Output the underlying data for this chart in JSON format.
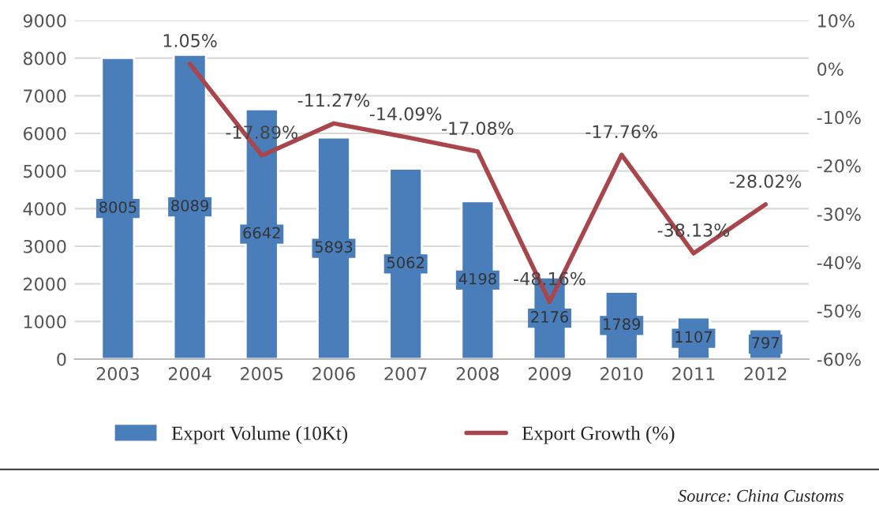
{
  "chart_data": {
    "type": "bar",
    "categories": [
      "2003",
      "2004",
      "2005",
      "2006",
      "2007",
      "2008",
      "2009",
      "2010",
      "2011",
      "2012"
    ],
    "series": [
      {
        "name": "Export Volume (10Kt)",
        "color": "#4a7ebb",
        "values": [
          8005,
          8089,
          6642,
          5893,
          5062,
          4198,
          2176,
          1789,
          1107,
          797
        ],
        "value_labels": [
          "8005",
          "8089",
          "6642",
          "5893",
          "5062",
          "4198",
          "2176",
          "1789",
          "1107",
          "797"
        ]
      },
      {
        "name": "Export Growth (%)",
        "type": "line",
        "axis": "y2",
        "color": "#a9464c",
        "values": [
          null,
          1.05,
          -17.89,
          -11.27,
          -14.09,
          -17.08,
          -48.16,
          -17.76,
          -38.13,
          -28.02
        ],
        "value_labels": [
          null,
          "1.05%",
          "-17.89%",
          "-11.27%",
          "-14.09%",
          "-17.08%",
          "-48.16%",
          "-17.76%",
          "-38.13%",
          "-28.02%"
        ]
      }
    ],
    "ylim": [
      0,
      9000
    ],
    "yticks": [
      0,
      1000,
      2000,
      3000,
      4000,
      5000,
      6000,
      7000,
      8000,
      9000
    ],
    "y2lim": [
      -60,
      10
    ],
    "y2ticks": [
      {
        "value": -60,
        "label": "-60%"
      },
      {
        "value": -50,
        "label": "-50%"
      },
      {
        "value": -40,
        "label": "-40%"
      },
      {
        "value": -30,
        "label": "-30%"
      },
      {
        "value": -20,
        "label": "-20%"
      },
      {
        "value": -10,
        "label": "-10%"
      },
      {
        "value": 0,
        "label": "0%"
      },
      {
        "value": 10,
        "label": "10%"
      }
    ],
    "grid": "y",
    "legend": "bottom",
    "annotations": [
      "Source: China Customs"
    ]
  }
}
